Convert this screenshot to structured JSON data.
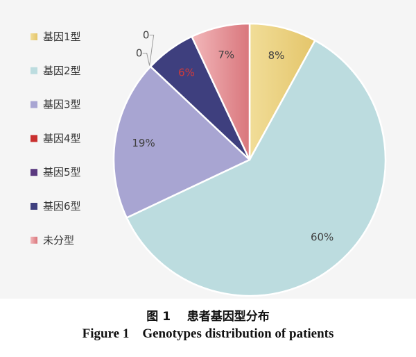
{
  "chart_data": {
    "type": "pie",
    "series": [
      {
        "name": "基因1型",
        "value": 8,
        "label": "8%",
        "label_color": "#404040",
        "color": "#f1dd98",
        "color_dark": "#e4c56a"
      },
      {
        "name": "基因2型",
        "value": 60,
        "label": "60%",
        "label_color": "#404040",
        "color": "#bcdcdf",
        "color_dark": "#bcdcdf"
      },
      {
        "name": "基因3型",
        "value": 19,
        "label": "19%",
        "label_color": "#404040",
        "color": "#a8a5d2",
        "color_dark": "#a8a5d2"
      },
      {
        "name": "基因4型",
        "value": 0,
        "label": "0",
        "label_color": "#404040",
        "color": "#c9302f",
        "color_dark": "#c9302f"
      },
      {
        "name": "基因5型",
        "value": 0,
        "label": "0",
        "label_color": "#404040",
        "color": "#5b3a80",
        "color_dark": "#5b3a80"
      },
      {
        "name": "基因6型",
        "value": 6,
        "label": "6%",
        "label_color": "#d23a3a",
        "color": "#3e3f7e",
        "color_dark": "#3e3f7e"
      },
      {
        "name": "未分型",
        "value": 7,
        "label": "7%",
        "label_color": "#404040",
        "color": "#f2b7ba",
        "color_dark": "#d9767c"
      }
    ],
    "legend_position": "left"
  },
  "caption": {
    "zh": "图 1    患者基因型分布",
    "en": "Figure 1    Genotypes distribution of patients"
  }
}
